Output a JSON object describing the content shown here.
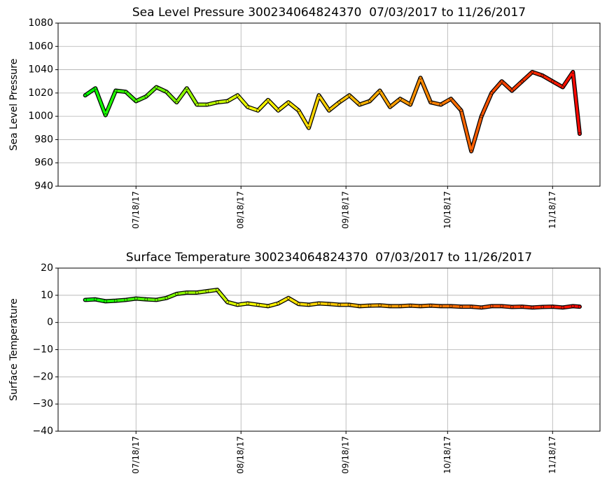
{
  "chart_data": [
    {
      "type": "line",
      "title": "Sea Level Pressure 300234064824370  07/03/2017 to 11/26/2017",
      "ylabel": "Sea Level Pressure",
      "x": [
        "07/03/17",
        "07/06/17",
        "07/09/17",
        "07/12/17",
        "07/15/17",
        "07/18/17",
        "07/21/17",
        "07/24/17",
        "07/27/17",
        "07/30/17",
        "08/02/17",
        "08/05/17",
        "08/08/17",
        "08/11/17",
        "08/14/17",
        "08/17/17",
        "08/20/17",
        "08/23/17",
        "08/26/17",
        "08/29/17",
        "09/01/17",
        "09/04/17",
        "09/07/17",
        "09/10/17",
        "09/13/17",
        "09/16/17",
        "09/19/17",
        "09/22/17",
        "09/25/17",
        "09/28/17",
        "10/01/17",
        "10/04/17",
        "10/07/17",
        "10/10/17",
        "10/13/17",
        "10/16/17",
        "10/19/17",
        "10/22/17",
        "10/25/17",
        "10/28/17",
        "10/31/17",
        "11/03/17",
        "11/06/17",
        "11/09/17",
        "11/12/17",
        "11/15/17",
        "11/18/17",
        "11/21/17",
        "11/24/17",
        "11/26/17"
      ],
      "series": [
        {
          "values": [
            1018,
            1024,
            1001,
            1022,
            1021,
            1013,
            1017,
            1025,
            1021,
            1012,
            1024,
            1010,
            1010,
            1012,
            1013,
            1018,
            1008,
            1005,
            1014,
            1005,
            1012,
            1005,
            990,
            1018,
            1005,
            1012,
            1018,
            1010,
            1013,
            1022,
            1008,
            1015,
            1010,
            1033,
            1012,
            1010,
            1015,
            1005,
            970,
            1000,
            1020,
            1030,
            1022,
            1030,
            1038,
            1035,
            1030,
            1025,
            1038,
            985
          ]
        }
      ],
      "color_stops": [
        "#00ff00",
        "#ffff00",
        "#ff8c00",
        "#ff0000"
      ],
      "xlim": [
        "06/25/17",
        "12/02/17"
      ],
      "xticks": [
        "07/18/17",
        "08/18/17",
        "09/18/17",
        "10/18/17",
        "11/18/17"
      ],
      "ylim": [
        940,
        1080
      ],
      "yticks": [
        940,
        960,
        980,
        1000,
        1020,
        1040,
        1060,
        1080
      ],
      "grid": true
    },
    {
      "type": "line",
      "title": "Surface Temperature 300234064824370  07/03/2017 to 11/26/2017",
      "ylabel": "Surface Temperature",
      "x": [
        "07/03/17",
        "07/06/17",
        "07/09/17",
        "07/12/17",
        "07/15/17",
        "07/18/17",
        "07/21/17",
        "07/24/17",
        "07/27/17",
        "07/30/17",
        "08/02/17",
        "08/05/17",
        "08/08/17",
        "08/11/17",
        "08/14/17",
        "08/17/17",
        "08/20/17",
        "08/23/17",
        "08/26/17",
        "08/29/17",
        "09/01/17",
        "09/04/17",
        "09/07/17",
        "09/10/17",
        "09/13/17",
        "09/16/17",
        "09/19/17",
        "09/22/17",
        "09/25/17",
        "09/28/17",
        "10/01/17",
        "10/04/17",
        "10/07/17",
        "10/10/17",
        "10/13/17",
        "10/16/17",
        "10/19/17",
        "10/22/17",
        "10/25/17",
        "10/28/17",
        "10/31/17",
        "11/03/17",
        "11/06/17",
        "11/09/17",
        "11/12/17",
        "11/15/17",
        "11/18/17",
        "11/21/17",
        "11/24/17",
        "11/26/17"
      ],
      "series": [
        {
          "values": [
            8.3,
            8.5,
            7.8,
            8.0,
            8.3,
            8.8,
            8.5,
            8.3,
            9.0,
            10.5,
            11.0,
            11.0,
            11.5,
            12.0,
            7.5,
            6.5,
            7.0,
            6.5,
            6.0,
            7.0,
            9.0,
            6.8,
            6.5,
            7.0,
            6.8,
            6.5,
            6.5,
            6.0,
            6.2,
            6.3,
            6.0,
            6.0,
            6.2,
            6.0,
            6.2,
            6.0,
            6.0,
            5.8,
            5.8,
            5.5,
            6.0,
            6.0,
            5.7,
            5.8,
            5.5,
            5.7,
            5.8,
            5.5,
            6.0,
            5.8
          ]
        }
      ],
      "color_stops": [
        "#00ff00",
        "#ffff00",
        "#ff8c00",
        "#ff0000"
      ],
      "xlim": [
        "06/25/17",
        "12/02/17"
      ],
      "xticks": [
        "07/18/17",
        "08/18/17",
        "09/18/17",
        "10/18/17",
        "11/18/17"
      ],
      "ylim": [
        -40,
        20
      ],
      "yticks": [
        {
          "value": -40,
          "label": "−40"
        },
        {
          "value": -30,
          "label": "−30"
        },
        {
          "value": -20,
          "label": "−20"
        },
        {
          "value": -10,
          "label": "−10"
        },
        0,
        10,
        20
      ],
      "grid": true
    }
  ]
}
